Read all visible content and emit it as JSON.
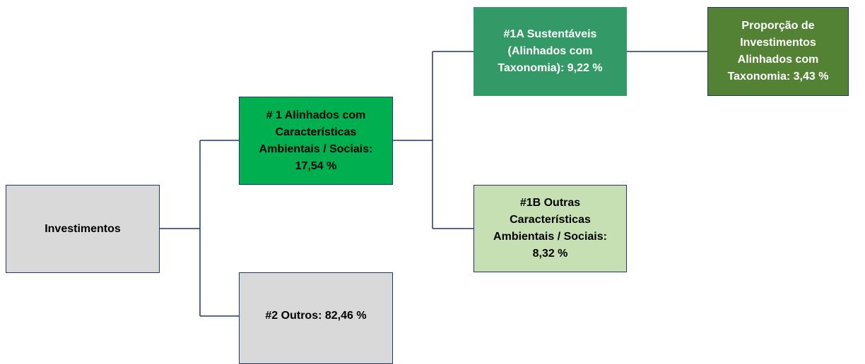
{
  "nodes": [
    {
      "lines": [
        "Investimentos"
      ]
    },
    {
      "lines": [
        "# 1 Alinhados com",
        "Características",
        "Ambientais / Sociais:",
        "17,54 %"
      ]
    },
    {
      "lines": [
        "#2 Outros: 82,46 %"
      ]
    },
    {
      "lines": [
        "#1A Sustentáveis",
        "(Alinhados com",
        "Taxonomia): 9,22 %"
      ]
    },
    {
      "lines": [
        "#1B Outras",
        "Características",
        "Ambientais / Sociais:",
        "8,32 %"
      ]
    },
    {
      "lines": [
        "Proporção de",
        "Investimentos",
        "Alinhados com",
        "Taxonomia: 3,43 %"
      ]
    }
  ]
}
